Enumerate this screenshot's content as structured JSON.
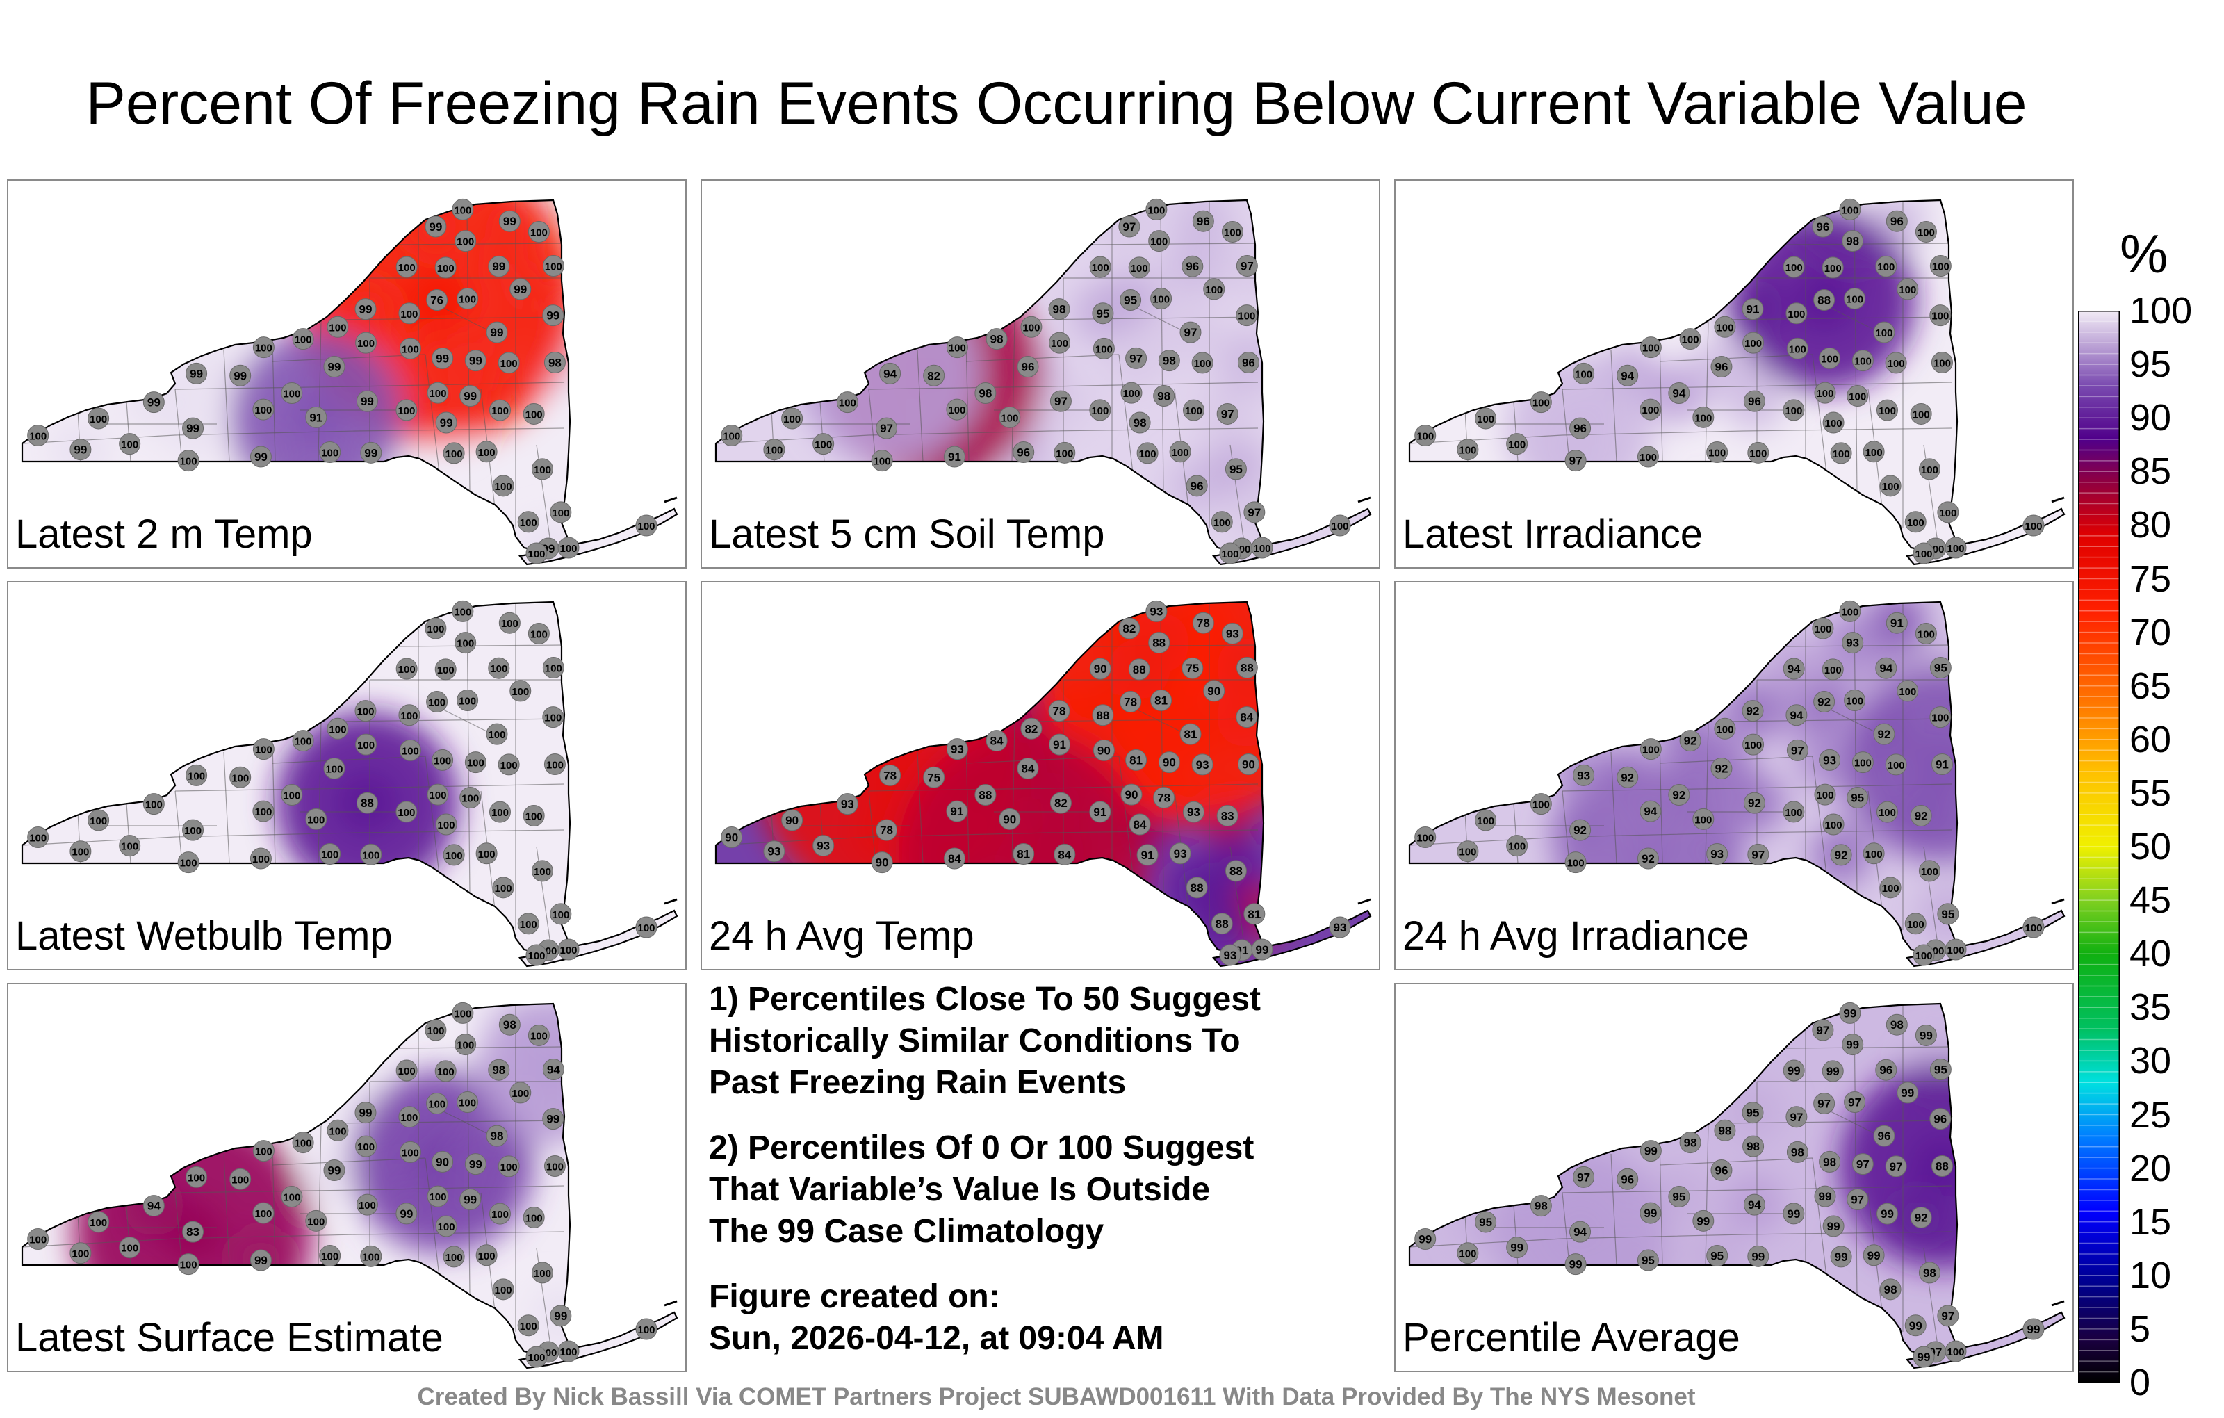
{
  "title": "Percent Of Freezing Rain Events Occurring Below Current Variable Value",
  "panels": [
    {
      "id": "p1",
      "label": "Latest 2 m Temp",
      "base": 100,
      "hotspots": [
        {
          "station": "76",
          "value": 76,
          "intensity": 0.9
        },
        {
          "station": "91",
          "value": 91,
          "intensity": 0.4
        }
      ],
      "stations": [
        "100",
        "100",
        "100",
        "100",
        "100",
        "99",
        "99",
        "99",
        "100",
        "99",
        "99",
        "100",
        "98",
        "99",
        "99",
        "99",
        "76",
        "99",
        "100",
        "99",
        "99",
        "100",
        "100",
        "100",
        "99",
        "99",
        "100",
        "100",
        "99",
        "100",
        "100",
        "100",
        "100",
        "99",
        "99",
        "100",
        "99",
        "99",
        "100",
        "91",
        "99",
        "100",
        "100",
        "100",
        "100",
        "100",
        "100",
        "100",
        "100",
        "100",
        "100",
        "99",
        "99",
        "100",
        "100",
        "100",
        "100",
        "100"
      ]
    },
    {
      "id": "p2",
      "label": "Latest 5 cm Soil Temp",
      "base": 98,
      "hotspots": [
        {
          "station": "82",
          "value": 82,
          "intensity": 0.6
        },
        {
          "station": "94",
          "value": 94,
          "intensity": 0.45
        }
      ],
      "stations": [
        "96",
        "95",
        "96",
        "95",
        "97",
        "94",
        "91",
        "96",
        "97",
        "97",
        "97",
        "97",
        "96",
        "98",
        "97",
        "82",
        "95",
        "96",
        "98",
        "96",
        "98",
        "100",
        "100",
        "98",
        "97",
        "100",
        "100",
        "100",
        "100",
        "100",
        "100",
        "100",
        "100",
        "97",
        "100",
        "100",
        "100",
        "98",
        "100",
        "100",
        "98",
        "100",
        "100",
        "100",
        "100",
        "100",
        "100",
        "100",
        "100",
        "100",
        "100",
        "100",
        "100",
        "100",
        "100",
        "100",
        "100",
        "100"
      ]
    },
    {
      "id": "p3",
      "label": "Latest Irradiance",
      "base": 100,
      "hotspots": [
        {
          "station": "88",
          "value": 88,
          "intensity": 0.45
        },
        {
          "station": "96",
          "value": 96,
          "intensity": 0.3
        }
      ],
      "stations": [
        "100",
        "100",
        "100",
        "100",
        "100",
        "100",
        "100",
        "100",
        "100",
        "96",
        "100",
        "100",
        "100",
        "91",
        "96",
        "94",
        "88",
        "96",
        "94",
        "96",
        "100",
        "98",
        "100",
        "100",
        "100",
        "100",
        "97",
        "100",
        "100",
        "100",
        "100",
        "100",
        "100",
        "96",
        "100",
        "100",
        "100",
        "100",
        "100",
        "100",
        "100",
        "100",
        "100",
        "100",
        "100",
        "100",
        "100",
        "100",
        "100",
        "100",
        "100",
        "100",
        "100",
        "100",
        "100",
        "100",
        "100",
        "100"
      ]
    },
    {
      "id": "p4",
      "label": "Latest Wetbulb Temp",
      "base": 100,
      "hotspots": [
        {
          "station": "88",
          "value": 88,
          "intensity": 0.45
        }
      ],
      "stations": [
        "100",
        "100",
        "100",
        "100",
        "100",
        "100",
        "100",
        "100",
        "100",
        "100",
        "100",
        "100",
        "100",
        "100",
        "88",
        "100",
        "100",
        "100",
        "100",
        "100",
        "100",
        "100",
        "100",
        "100",
        "100",
        "100",
        "100",
        "100",
        "100",
        "100",
        "100",
        "100",
        "100",
        "100",
        "100",
        "100",
        "100",
        "100",
        "100",
        "100",
        "100",
        "100",
        "100",
        "100",
        "100",
        "100",
        "100",
        "100",
        "100",
        "100",
        "100",
        "100",
        "100",
        "100",
        "100",
        "100",
        "100",
        "100"
      ]
    },
    {
      "id": "p5",
      "label": "24 h Avg Temp",
      "base": 90,
      "hotspots": [
        {
          "station": "75",
          "value": 75,
          "intensity": 1.0
        },
        {
          "station": "78",
          "value": 78,
          "intensity": 0.8
        },
        {
          "station": "81",
          "value": 81,
          "intensity": 0.75
        }
      ],
      "stations": [
        "88",
        "88",
        "81",
        "88",
        "81",
        "78",
        "84",
        "75",
        "88",
        "78",
        "81",
        "83",
        "90",
        "78",
        "82",
        "75",
        "78",
        "78",
        "88",
        "84",
        "78",
        "88",
        "91",
        "84",
        "81",
        "84",
        "90",
        "91",
        "93",
        "91",
        "93",
        "90",
        "81",
        "82",
        "84",
        "90",
        "91",
        "90",
        "90",
        "90",
        "84",
        "82",
        "88",
        "93",
        "91",
        "93",
        "90",
        "88",
        "90",
        "93",
        "93",
        "90",
        "93",
        "93",
        "93",
        "93",
        "99",
        "93"
      ]
    },
    {
      "id": "p6",
      "label": "24 h Avg Irradiance",
      "base": 97,
      "hotspots": [
        {
          "station": "91",
          "value": 91,
          "intensity": 0.5
        },
        {
          "station": "92",
          "value": 92,
          "intensity": 0.45
        }
      ],
      "stations": [
        "100",
        "100",
        "93",
        "94",
        "95",
        "93",
        "92",
        "94",
        "95",
        "92",
        "92",
        "92",
        "91",
        "92",
        "92",
        "92",
        "92",
        "91",
        "92",
        "92",
        "95",
        "93",
        "92",
        "92",
        "93",
        "97",
        "100",
        "100",
        "100",
        "94",
        "100",
        "97",
        "100",
        "100",
        "100",
        "100",
        "100",
        "100",
        "100",
        "100",
        "100",
        "100",
        "100",
        "100",
        "100",
        "100",
        "94",
        "100",
        "100",
        "100",
        "100",
        "100",
        "100",
        "100",
        "100",
        "100",
        "100",
        "100"
      ]
    },
    {
      "id": "p7",
      "label": "Latest Surface Estimate",
      "base": 100,
      "hotspots": [
        {
          "station": "83",
          "value": 83,
          "intensity": 0.7
        },
        {
          "station": "90",
          "value": 90,
          "intensity": 0.45
        },
        {
          "station": "94",
          "value": 94,
          "intensity": 0.3
        }
      ],
      "stations": [
        "100",
        "100",
        "100",
        "100",
        "99",
        "100",
        "99",
        "98",
        "94",
        "83",
        "98",
        "100",
        "100",
        "99",
        "100",
        "100",
        "100",
        "98",
        "100",
        "99",
        "99",
        "100",
        "100",
        "100",
        "90",
        "100",
        "100",
        "99",
        "94",
        "100",
        "100",
        "100",
        "100",
        "100",
        "99",
        "100",
        "100",
        "99",
        "100",
        "100",
        "100",
        "100",
        "100",
        "100",
        "100",
        "100",
        "100",
        "100",
        "100",
        "100",
        "100",
        "100",
        "100",
        "100",
        "100",
        "100",
        "100",
        "100"
      ]
    },
    {
      "id": "p8",
      "label": "Percentile Average",
      "base": 96,
      "hotspots": [
        {
          "station": "88",
          "value": 88,
          "intensity": 0.55
        },
        {
          "station": "94",
          "value": 94,
          "intensity": 0.4
        }
      ],
      "stations": [
        "98",
        "98",
        "95",
        "97",
        "97",
        "97",
        "95",
        "96",
        "95",
        "94",
        "96",
        "92",
        "88",
        "95",
        "94",
        "96",
        "97",
        "98",
        "95",
        "96",
        "97",
        "99",
        "99",
        "98",
        "98",
        "99",
        "99",
        "99",
        "98",
        "99",
        "99",
        "98",
        "97",
        "97",
        "96",
        "95",
        "97",
        "97",
        "99",
        "99",
        "99",
        "98",
        "99",
        "97",
        "98",
        "99",
        "99",
        "99",
        "99",
        "99",
        "99",
        "99",
        "100",
        "99",
        "99",
        "99",
        "100",
        "99"
      ]
    }
  ],
  "notes": {
    "note1": [
      "1) Percentiles Close To 50 Suggest",
      "Historically Similar Conditions To",
      "Past Freezing Rain Events"
    ],
    "note2": [
      "2) Percentiles Of 0 Or 100 Suggest",
      "That Variable’s Value Is Outside",
      "The 99 Case Climatology"
    ],
    "created_label": "Figure created on:",
    "created_value": "Sun, 2026-04-12, at 09:04 AM"
  },
  "colorbar": {
    "unit": "%",
    "ticks": [
      "100",
      "95",
      "90",
      "85",
      "80",
      "75",
      "70",
      "65",
      "60",
      "55",
      "50",
      "45",
      "40",
      "35",
      "30",
      "25",
      "20",
      "15",
      "10",
      "5",
      "0"
    ]
  },
  "credit": "Created By Nick Bassill Via COMET Partners Project SUBAWD001611 With Data Provided By The NYS Mesonet"
}
